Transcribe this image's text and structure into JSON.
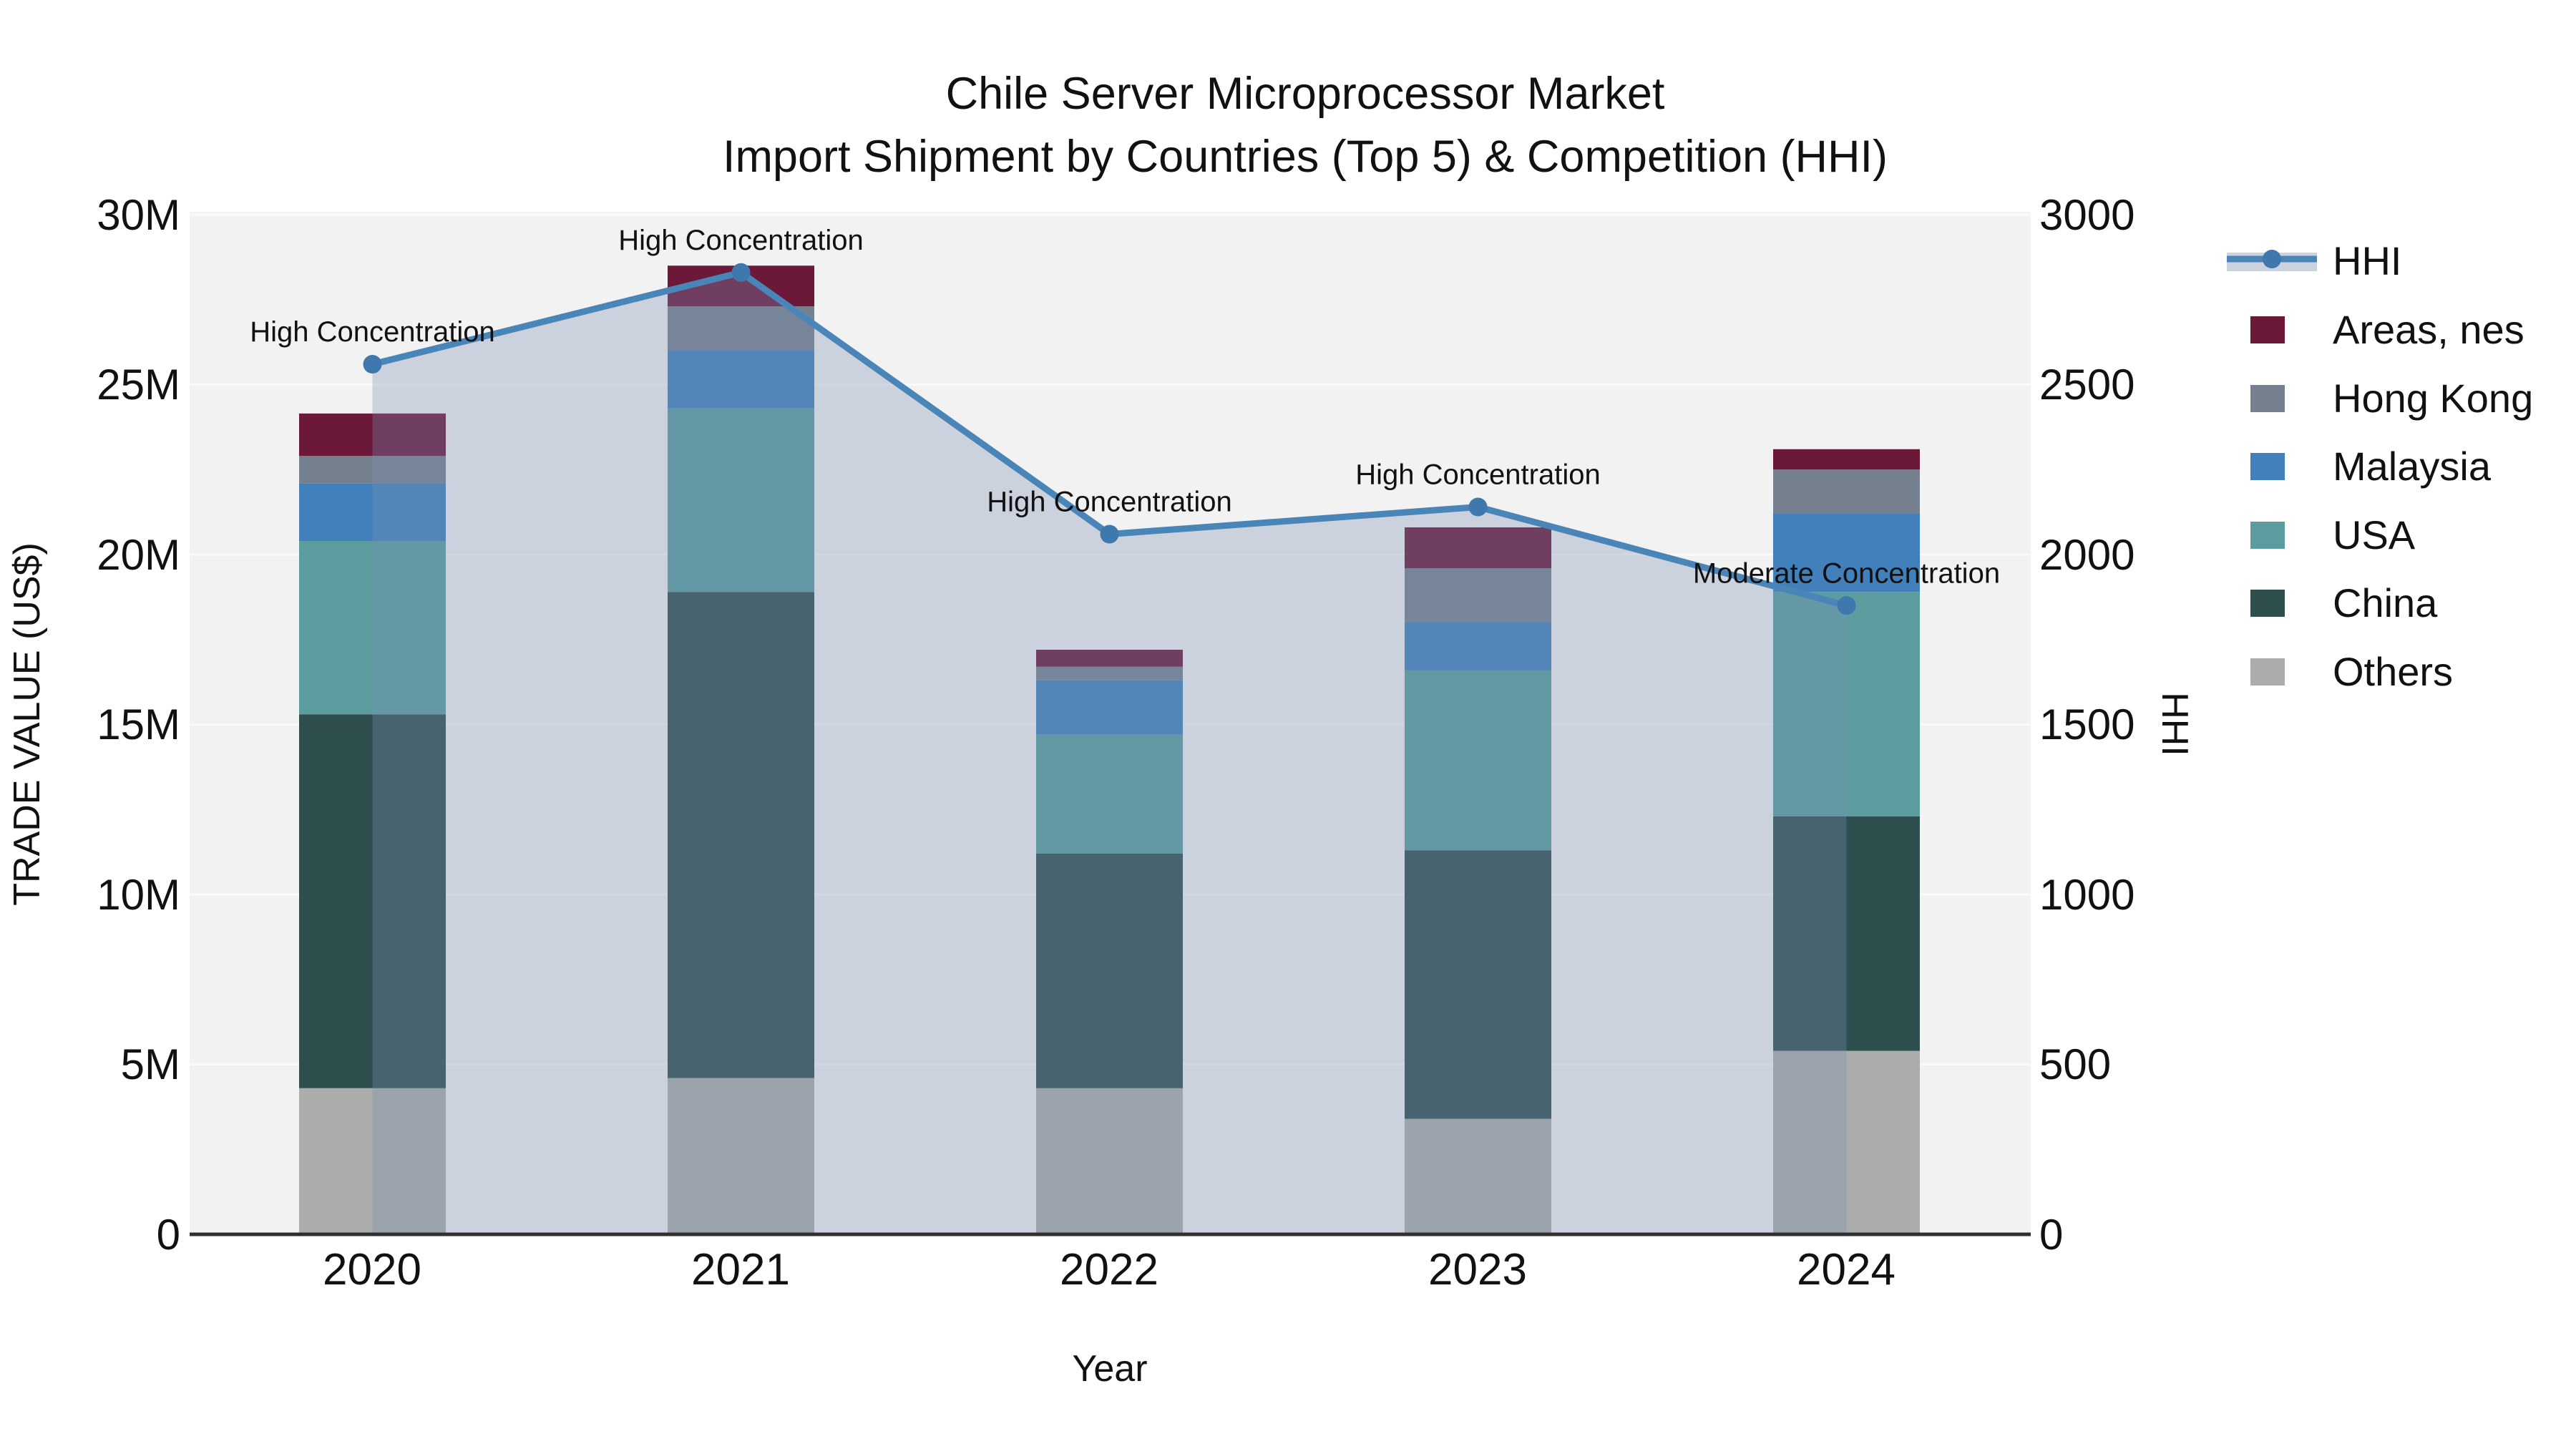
{
  "title": {
    "line1": "Chile Server Microprocessor Market",
    "line2": "Import Shipment by Countries (Top 5) & Competition (HHI)"
  },
  "axes": {
    "x_label": "Year",
    "y_left_label": "TRADE VALUE (US$)",
    "y_right_label": "HHI",
    "y_left_ticks": [
      "0",
      "5M",
      "10M",
      "15M",
      "20M",
      "25M",
      "30M"
    ],
    "y_right_ticks": [
      "0",
      "500",
      "1000",
      "1500",
      "2000",
      "2500",
      "3000"
    ],
    "x_ticks": [
      "2020",
      "2021",
      "2022",
      "2023",
      "2024"
    ]
  },
  "legend": {
    "items": [
      {
        "label": "HHI",
        "type": "line",
        "color": "#4A85B8"
      },
      {
        "label": "Areas, nes",
        "type": "patch",
        "color": "#6B1839"
      },
      {
        "label": "Hong Kong",
        "type": "patch",
        "color": "#76818F"
      },
      {
        "label": "Malaysia",
        "type": "patch",
        "color": "#4180BB"
      },
      {
        "label": "USA",
        "type": "patch",
        "color": "#5C9C9E"
      },
      {
        "label": "China",
        "type": "patch",
        "color": "#2E4F4E"
      },
      {
        "label": "Others",
        "type": "patch",
        "color": "#ABADAA"
      }
    ]
  },
  "colors": {
    "hhi_line": "#4A85B8",
    "hhi_marker": "#3F78AD",
    "hhi_area_fill": "#7890B4",
    "hhi_area_opacity": 0.32,
    "legend_band": "#CBD2DD",
    "plot_bg": "#F2F2F2",
    "gridline": "#FAFAFA",
    "axis_line": "#303030"
  },
  "chart_data": {
    "type": "bar",
    "subtype": "stacked-bars-with-line-overlay",
    "categories": [
      "2020",
      "2021",
      "2022",
      "2023",
      "2024"
    ],
    "values_unit": "millions USD",
    "stack_order_bottom_to_top": [
      "Others",
      "China",
      "USA",
      "Malaysia",
      "Hong Kong",
      "Areas, nes"
    ],
    "series": [
      {
        "name": "Others",
        "color": "#ABADAA",
        "values": [
          4.3,
          4.6,
          4.3,
          3.4,
          5.4
        ]
      },
      {
        "name": "China",
        "color": "#2E4F4E",
        "values": [
          11.0,
          14.3,
          6.9,
          7.9,
          6.9
        ]
      },
      {
        "name": "USA",
        "color": "#5C9C9E",
        "values": [
          5.1,
          5.4,
          3.5,
          5.3,
          6.6
        ]
      },
      {
        "name": "Malaysia",
        "color": "#4180BB",
        "values": [
          1.7,
          1.7,
          1.6,
          1.4,
          2.3
        ]
      },
      {
        "name": "Hong Kong",
        "color": "#76818F",
        "values": [
          0.8,
          1.3,
          0.4,
          1.6,
          1.3
        ]
      },
      {
        "name": "Areas, nes",
        "color": "#6B1839",
        "values": [
          1.25,
          1.2,
          0.5,
          1.2,
          0.6
        ]
      }
    ],
    "bar_totals": [
      24.15,
      28.5,
      17.2,
      20.8,
      23.1
    ],
    "line": {
      "name": "HHI",
      "axis": "right",
      "color": "#4A85B8",
      "area_under_line": true,
      "values": [
        2560,
        2830,
        2060,
        2140,
        1850
      ]
    },
    "annotations": [
      {
        "category": "2020",
        "label": "High Concentration"
      },
      {
        "category": "2021",
        "label": "High Concentration"
      },
      {
        "category": "2022",
        "label": "High Concentration"
      },
      {
        "category": "2023",
        "label": "High Concentration"
      },
      {
        "category": "2024",
        "label": "Moderate Concentration"
      }
    ],
    "ylim_left_millions": [
      0,
      30
    ],
    "ylim_right": [
      0,
      3000
    ],
    "grid": true,
    "legend_position": "right-outside"
  }
}
